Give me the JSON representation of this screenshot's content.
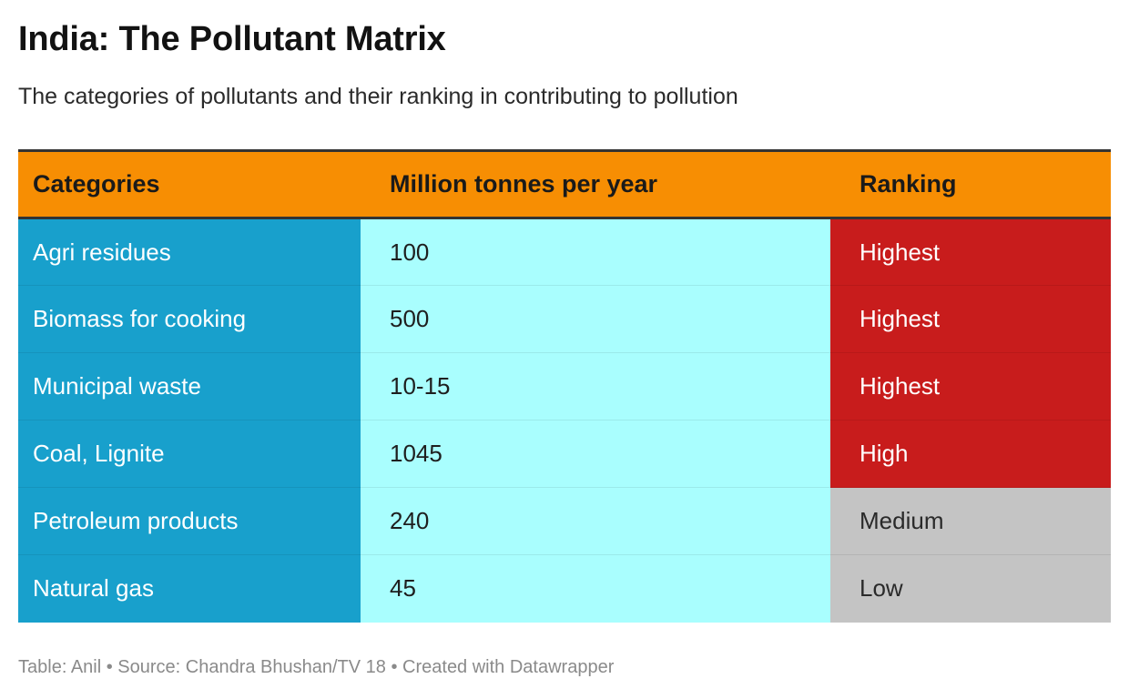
{
  "header": {
    "title": "India: The Pollutant Matrix",
    "subtitle": "The categories of pollutants and their ranking in contributing to pollution"
  },
  "chart_data": {
    "type": "table",
    "title": "India: The Pollutant Matrix",
    "subtitle": "The categories of pollutants and their ranking in contributing to pollution",
    "columns": [
      "Categories",
      "Million tonnes per year",
      "Ranking"
    ],
    "rows": [
      {
        "category": "Agri residues",
        "amount": "100",
        "ranking": "Highest"
      },
      {
        "category": "Biomass for cooking",
        "amount": "500",
        "ranking": "Highest"
      },
      {
        "category": "Municipal waste",
        "amount": "10-15",
        "ranking": "Highest"
      },
      {
        "category": "Coal, Lignite",
        "amount": "1045",
        "ranking": "High"
      },
      {
        "category": "Petroleum products",
        "amount": "240",
        "ranking": "Medium"
      },
      {
        "category": "Natural gas",
        "amount": "45",
        "ranking": "Low"
      }
    ]
  },
  "colors": {
    "header_bg": "#f78e03",
    "category_col": "#18a0cc",
    "value_col": "#a9fefe",
    "ranking": {
      "Highest": {
        "bg": "#c81c1c",
        "fg": "#ffffff"
      },
      "High": {
        "bg": "#c81c1c",
        "fg": "#ffffff"
      },
      "Medium": {
        "bg": "#c4c4c4",
        "fg": "#2a2a2a"
      },
      "Low": {
        "bg": "#c4c4c4",
        "fg": "#2a2a2a"
      }
    }
  },
  "footer": {
    "source": "Table: Anil • Source: Chandra Bhushan/TV 18 • Created with Datawrapper"
  }
}
